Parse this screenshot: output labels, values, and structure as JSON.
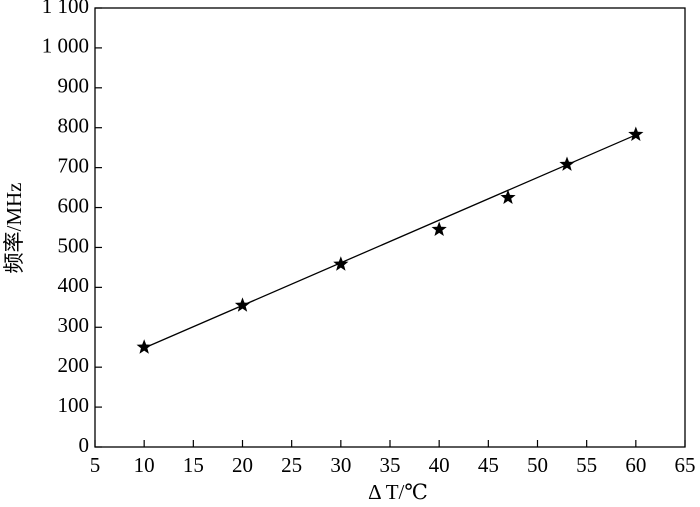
{
  "chart_data": {
    "type": "scatter",
    "x_label": "Δ T/℃",
    "y_label": "频率/MHz",
    "x": [
      10,
      20,
      30,
      40,
      47,
      53,
      60
    ],
    "series": [
      {
        "color": "#000000",
        "marker": "star",
        "values": [
          250,
          355,
          458,
          545,
          625,
          708,
          783
        ]
      }
    ],
    "fit": {
      "color": "#000000",
      "x": [
        10,
        60
      ],
      "values": [
        248,
        782
      ]
    },
    "xlim": [
      5,
      65
    ],
    "xticks": [
      5,
      10,
      15,
      20,
      25,
      30,
      35,
      40,
      45,
      50,
      55,
      60,
      65
    ],
    "ylim": [
      0,
      1100
    ],
    "yticks": [
      0,
      100,
      200,
      300,
      400,
      500,
      600,
      700,
      800,
      900,
      {
        "value": 1000,
        "label": "1 000"
      },
      {
        "value": 1100,
        "label": "1 100"
      }
    ],
    "grid": false
  }
}
